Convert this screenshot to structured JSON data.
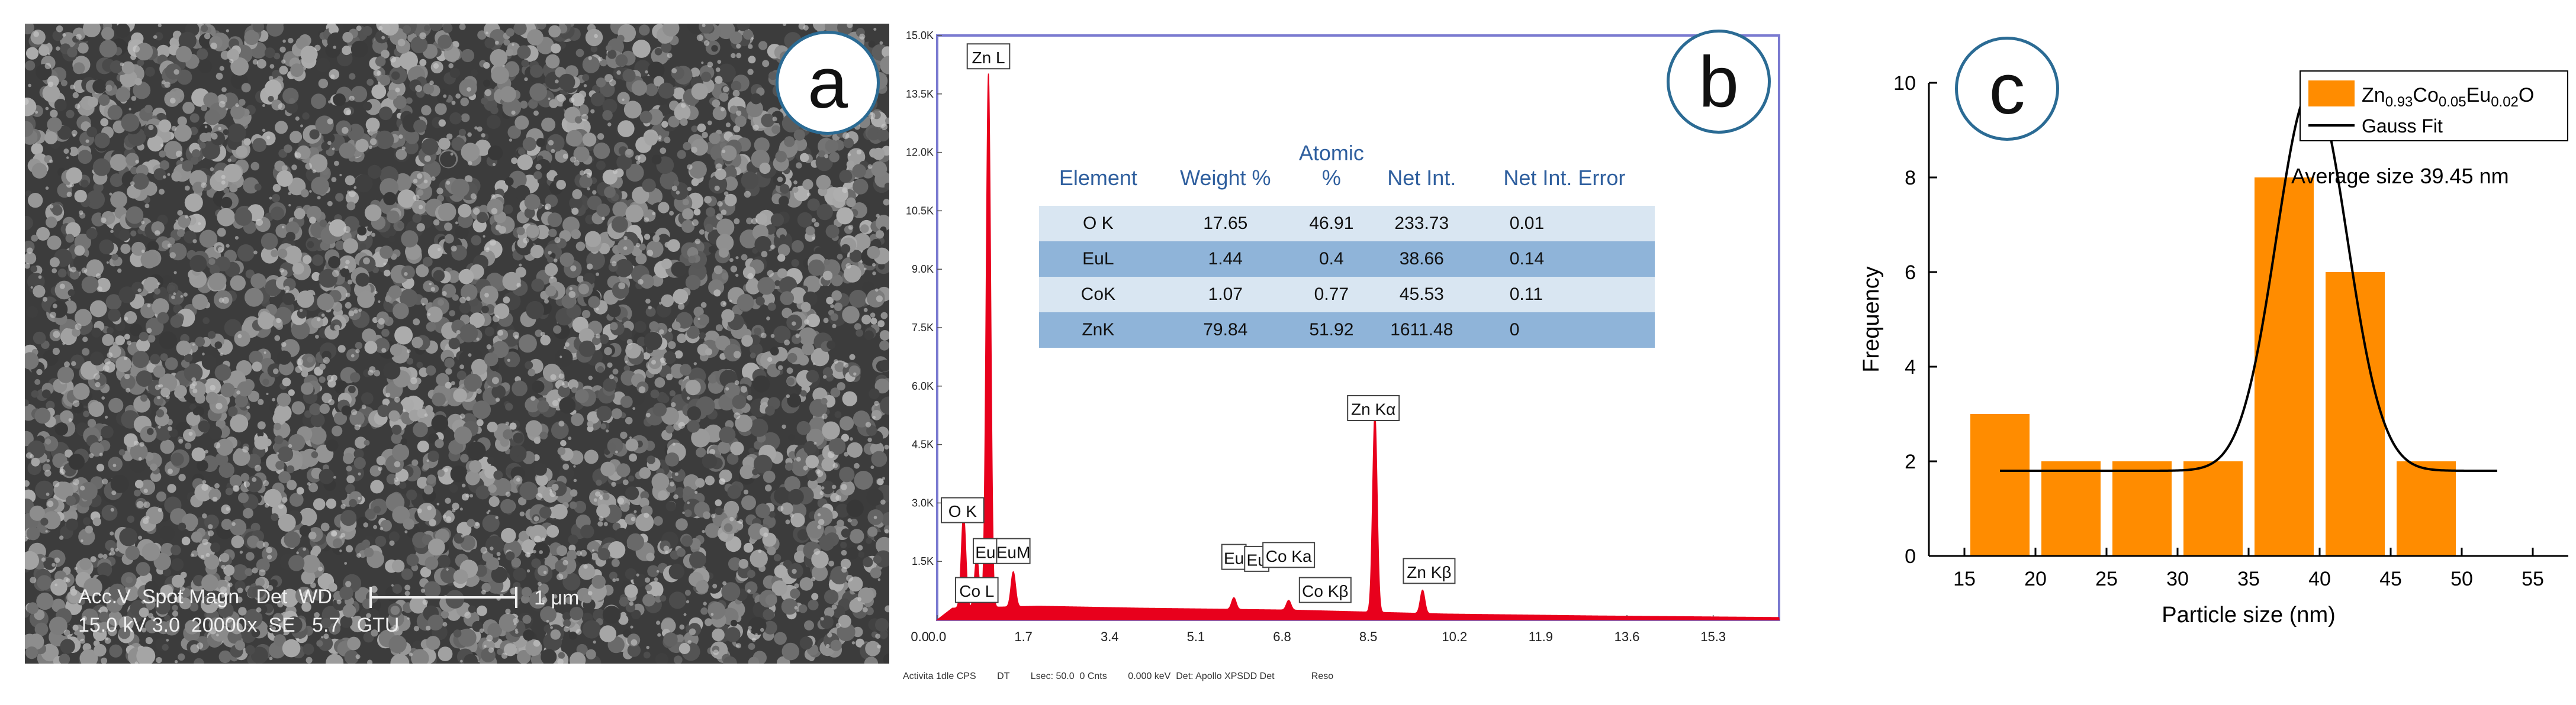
{
  "panel_a": {
    "badge": "a",
    "sem_info_line1": "Acc.V  Spot Magn   Det  WD",
    "sem_info_line2": "15.0 kV 3.0  20000x  SE   5.7   GTU",
    "scale_bar_label": "1 μm"
  },
  "panel_b": {
    "badge": "b",
    "table": {
      "headers": [
        "Element",
        "Weight %",
        "Atomic %",
        "Net Int.",
        "Net Int. Error"
      ],
      "rows": [
        [
          "O K",
          "17.65",
          "46.91",
          "233.73",
          "0.01"
        ],
        [
          "EuL",
          "1.44",
          "0.4",
          "38.66",
          "0.14"
        ],
        [
          "CoK",
          "1.07",
          "0.77",
          "45.53",
          "0.11"
        ],
        [
          "ZnK",
          "79.84",
          "51.92",
          "1611.48",
          "0"
        ]
      ]
    },
    "footer": "Activita 1dle CPS        DT        Lsec: 50.0  0 Cnts        0.000 keV  Det: Apollo XPSDD Det              Reso"
  },
  "panel_c": {
    "badge": "c",
    "annotation": "Average size 39.45 nm"
  },
  "chart_data": [
    {
      "type": "line",
      "panel": "b",
      "description_of_axes": "EDS spectrum, energy (keV) vs counts",
      "xlim": [
        0.0,
        16.6
      ],
      "ylim": [
        0,
        15000
      ],
      "x_ticks": [
        "0.0",
        "1.7",
        "3.4",
        "5.1",
        "6.8",
        "8.5",
        "10.2",
        "11.9",
        "13.6",
        "15.3"
      ],
      "x_tick_values": [
        0.0,
        1.7,
        3.4,
        5.1,
        6.8,
        8.5,
        10.2,
        11.9,
        13.6,
        15.3
      ],
      "y_ticks": [
        "1.5K",
        "3.0K",
        "4.5K",
        "6.0K",
        "7.5K",
        "9.0K",
        "10.5K",
        "12.0K",
        "13.5K",
        "15.0K"
      ],
      "y_tick_values": [
        1500,
        3000,
        4500,
        6000,
        7500,
        9000,
        10500,
        12000,
        13500,
        15000
      ],
      "x_origin_label": "0.0",
      "peaks": [
        {
          "x": 0.52,
          "y": 2400
        },
        {
          "x": 0.78,
          "y": 1300
        },
        {
          "x": 1.01,
          "y": 13700
        },
        {
          "x": 1.5,
          "y": 900
        },
        {
          "x": 5.85,
          "y": 300
        },
        {
          "x": 6.93,
          "y": 250
        },
        {
          "x": 8.63,
          "y": 5100
        },
        {
          "x": 9.57,
          "y": 600
        }
      ],
      "background": [
        [
          0.0,
          0
        ],
        [
          0.3,
          300
        ],
        [
          2.0,
          350
        ],
        [
          4.0,
          300
        ],
        [
          7.0,
          250
        ],
        [
          10.0,
          150
        ],
        [
          13.0,
          100
        ],
        [
          16.6,
          60
        ]
      ],
      "peak_labels": [
        {
          "text": "Zn L",
          "x": 1.01,
          "y": 14450
        },
        {
          "text": "O  K",
          "x": 0.5,
          "y": 2800
        },
        {
          "text": "Eu",
          "x": 0.95,
          "y": 1750
        },
        {
          "text": "EuM",
          "x": 1.5,
          "y": 1750
        },
        {
          "text": "Co L",
          "x": 0.78,
          "y": 750
        },
        {
          "text": "Eu",
          "x": 5.85,
          "y": 1600
        },
        {
          "text": "Eu",
          "x": 6.3,
          "y": 1550
        },
        {
          "text": "Co Ka",
          "x": 6.93,
          "y": 1650
        },
        {
          "text": "Co Kβ",
          "x": 7.65,
          "y": 750
        },
        {
          "text": "Zn Kα",
          "x": 8.6,
          "y": 5420
        },
        {
          "text": "Zn Kβ",
          "x": 9.7,
          "y": 1240
        }
      ],
      "color": "#e8001c"
    },
    {
      "type": "bar",
      "panel": "c",
      "xlabel": "Particle size (nm)",
      "ylabel": "Frequency",
      "xlim": [
        12.5,
        57.5
      ],
      "ylim": [
        0,
        10
      ],
      "x_ticks": [
        15,
        20,
        25,
        30,
        35,
        40,
        45,
        50,
        55
      ],
      "y_ticks": [
        0,
        2,
        4,
        6,
        8,
        10
      ],
      "bin_width": 5,
      "bin_centers": [
        17.5,
        22.5,
        27.5,
        32.5,
        37.5,
        42.5,
        47.5
      ],
      "values": [
        3,
        2,
        2,
        2,
        8,
        6,
        2
      ],
      "bar_color": "#ff8c00",
      "fit": {
        "name": "Gauss Fit",
        "center": 39.45,
        "baseline": 1.8,
        "peak": 9.9,
        "sigma": 2.5,
        "x_range": [
          17.5,
          52.5
        ],
        "color": "#000000"
      },
      "legend": {
        "placement": "top-right",
        "series_name_parts": [
          {
            "t": "Zn",
            "sub": false
          },
          {
            "t": "0.93",
            "sub": true
          },
          {
            "t": "Co",
            "sub": false
          },
          {
            "t": "0.05",
            "sub": true
          },
          {
            "t": "Eu",
            "sub": false
          },
          {
            "t": "0.02",
            "sub": true
          },
          {
            "t": "O",
            "sub": false
          }
        ],
        "fit_label": "Gauss Fit"
      }
    }
  ]
}
